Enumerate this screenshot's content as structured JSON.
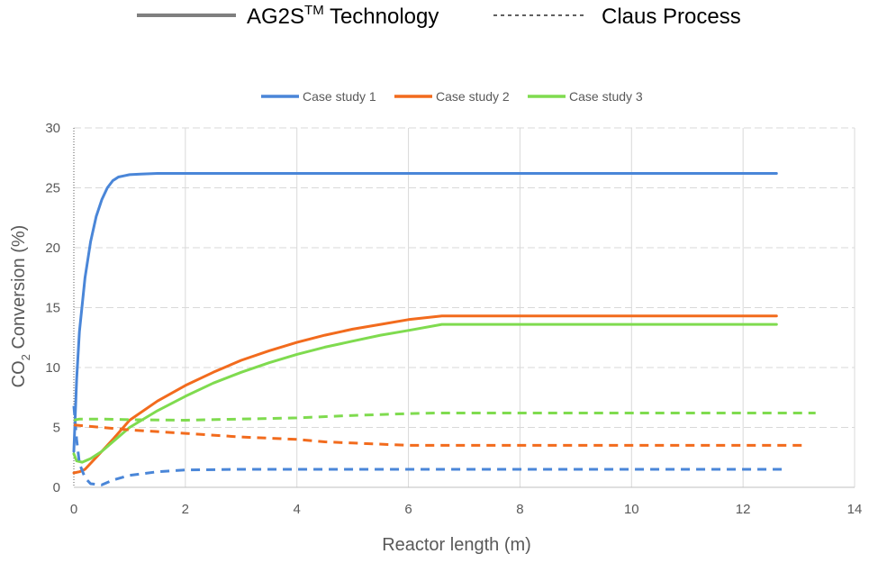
{
  "top_legend": {
    "solid_label": "AG2S",
    "solid_label_sup": "TM",
    "solid_label_suffix": " Technology",
    "dashed_label": "Claus Process"
  },
  "chart_data": {
    "type": "line",
    "title": "",
    "xlabel": "Reactor length (m)",
    "ylabel_main": "CO",
    "ylabel_sub": "2",
    "ylabel_rest": " Conversion (%)",
    "xlim": [
      0,
      14
    ],
    "ylim": [
      0,
      30
    ],
    "xticks": [
      0,
      2,
      4,
      6,
      8,
      10,
      12,
      14
    ],
    "yticks": [
      0,
      5,
      10,
      15,
      20,
      25,
      30
    ],
    "grid": "dashed",
    "legend_position": "top",
    "series": [
      {
        "name": "Case study 1",
        "color": "#4a86d8",
        "style": "solid",
        "x": [
          0,
          0.05,
          0.1,
          0.2,
          0.3,
          0.4,
          0.5,
          0.6,
          0.7,
          0.8,
          0.9,
          1.0,
          1.2,
          1.5,
          2,
          4,
          6,
          8,
          10,
          12,
          12.6
        ],
        "y": [
          3,
          9,
          13,
          17.5,
          20.5,
          22.6,
          24.0,
          25.0,
          25.6,
          25.9,
          26.0,
          26.1,
          26.15,
          26.2,
          26.2,
          26.2,
          26.2,
          26.2,
          26.2,
          26.2,
          26.2
        ]
      },
      {
        "name": "Case study 2",
        "color": "#f26b1d",
        "style": "solid",
        "x": [
          0,
          0.1,
          0.2,
          0.3,
          0.5,
          0.7,
          1.0,
          1.5,
          2,
          2.5,
          3,
          3.5,
          4,
          4.5,
          5,
          5.5,
          6,
          6.6,
          7,
          8,
          10,
          12,
          12.6
        ],
        "y": [
          1.2,
          1.3,
          1.5,
          2.0,
          3.0,
          4.0,
          5.6,
          7.2,
          8.5,
          9.6,
          10.6,
          11.4,
          12.1,
          12.7,
          13.2,
          13.6,
          14.0,
          14.3,
          14.3,
          14.3,
          14.3,
          14.3,
          14.3
        ]
      },
      {
        "name": "Case study 3",
        "color": "#7fdb4f",
        "style": "solid",
        "x": [
          0,
          0.05,
          0.15,
          0.3,
          0.5,
          0.7,
          1.0,
          1.5,
          2,
          2.5,
          3,
          3.5,
          4,
          4.5,
          5,
          5.5,
          6,
          6.6,
          7,
          8,
          10,
          12,
          12.6
        ],
        "y": [
          2.8,
          2.2,
          2.1,
          2.4,
          3.0,
          3.8,
          5.0,
          6.4,
          7.6,
          8.7,
          9.6,
          10.4,
          11.1,
          11.7,
          12.2,
          12.7,
          13.1,
          13.6,
          13.6,
          13.6,
          13.6,
          13.6,
          13.6
        ]
      },
      {
        "name": "Case study 1",
        "color": "#4a86d8",
        "style": "dashed",
        "x": [
          0,
          0.05,
          0.1,
          0.2,
          0.3,
          0.5,
          0.7,
          1.0,
          1.5,
          2,
          3,
          4,
          6,
          8,
          10,
          12,
          12.8
        ],
        "y": [
          6.8,
          4.0,
          2.0,
          0.8,
          0.3,
          0.2,
          0.6,
          1.0,
          1.3,
          1.45,
          1.5,
          1.5,
          1.5,
          1.5,
          1.5,
          1.5,
          1.5
        ]
      },
      {
        "name": "Case study 2",
        "color": "#f26b1d",
        "style": "dashed",
        "x": [
          0,
          0.5,
          1,
          2,
          3,
          4,
          4.5,
          5,
          6,
          7,
          8,
          10,
          12,
          13.1
        ],
        "y": [
          5.2,
          5.0,
          4.8,
          4.5,
          4.2,
          4.0,
          3.8,
          3.7,
          3.5,
          3.5,
          3.5,
          3.5,
          3.5,
          3.5
        ]
      },
      {
        "name": "Case study 3",
        "color": "#7fdb4f",
        "style": "dashed",
        "x": [
          0,
          0.1,
          0.5,
          1,
          2,
          3,
          4,
          5,
          6,
          6.5,
          7,
          8,
          10,
          12,
          13.3
        ],
        "y": [
          5.6,
          5.7,
          5.7,
          5.65,
          5.6,
          5.7,
          5.8,
          6.0,
          6.15,
          6.2,
          6.2,
          6.2,
          6.2,
          6.2,
          6.2
        ]
      }
    ],
    "legend": [
      {
        "label": "Case study 1",
        "color": "#4a86d8"
      },
      {
        "label": "Case study 2",
        "color": "#f26b1d"
      },
      {
        "label": "Case study 3",
        "color": "#7fdb4f"
      }
    ]
  }
}
